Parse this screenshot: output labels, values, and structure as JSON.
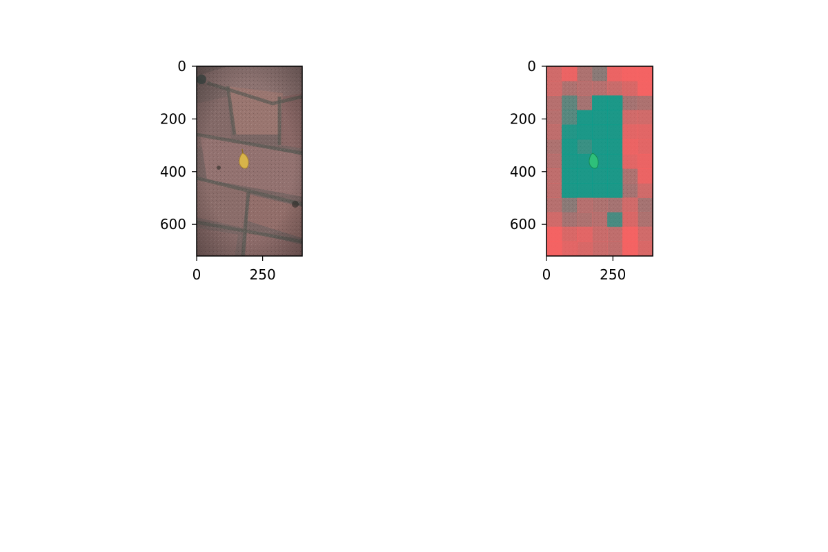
{
  "chart_data": [
    {
      "type": "image",
      "panel": "original",
      "xlim": [
        0,
        400
      ],
      "ylim": [
        720,
        0
      ],
      "xticks": [
        0,
        250
      ],
      "yticks": [
        0,
        200,
        400,
        600
      ],
      "image": {
        "subject": "a yellow leaf on worn red brick pavement",
        "leaf_color": "#d8b44a",
        "brick_color": "#8a6c68",
        "mortar_color": "#6e6c64"
      }
    },
    {
      "type": "heatmap",
      "panel": "overlay",
      "xlim": [
        0,
        400
      ],
      "ylim": [
        720,
        0
      ],
      "xticks": [
        0,
        250
      ],
      "yticks": [
        0,
        200,
        400,
        600
      ],
      "grid": {
        "rows": 13,
        "cols": 7
      },
      "colors": {
        "positive": "#00a08c",
        "negative": "#ff6060",
        "neutral": "#8a7a78",
        "leaf_overlay": "#2ec07a"
      },
      "cell_values": [
        [
          -0.6,
          -0.9,
          -0.2,
          0.0,
          -0.9,
          -1.0,
          -1.0
        ],
        [
          -0.6,
          -0.2,
          -0.3,
          -0.3,
          -0.5,
          -0.7,
          -1.0
        ],
        [
          -0.3,
          0.1,
          -0.1,
          1.0,
          1.0,
          -0.1,
          -0.2
        ],
        [
          -0.3,
          0.2,
          1.0,
          1.0,
          1.0,
          -0.6,
          -0.6
        ],
        [
          -0.4,
          0.9,
          1.0,
          1.0,
          1.0,
          -0.8,
          -0.8
        ],
        [
          -0.2,
          1.0,
          0.6,
          1.0,
          1.0,
          -0.9,
          -0.8
        ],
        [
          -0.3,
          1.0,
          1.0,
          1.0,
          1.0,
          -0.8,
          -0.9
        ],
        [
          -0.4,
          1.0,
          1.0,
          1.0,
          1.0,
          -0.2,
          -0.9
        ],
        [
          -0.4,
          1.0,
          1.0,
          1.0,
          1.0,
          -0.1,
          -0.6
        ],
        [
          -0.3,
          0.0,
          -0.3,
          -0.2,
          -0.1,
          -0.6,
          -0.1
        ],
        [
          -0.6,
          -0.1,
          -0.2,
          -0.3,
          0.4,
          -0.7,
          -0.2
        ],
        [
          -1.0,
          -0.7,
          -0.8,
          -0.5,
          -0.4,
          -1.0,
          -0.6
        ],
        [
          -1.0,
          -0.8,
          -0.7,
          -0.5,
          -0.4,
          -1.0,
          -0.7
        ]
      ]
    }
  ]
}
